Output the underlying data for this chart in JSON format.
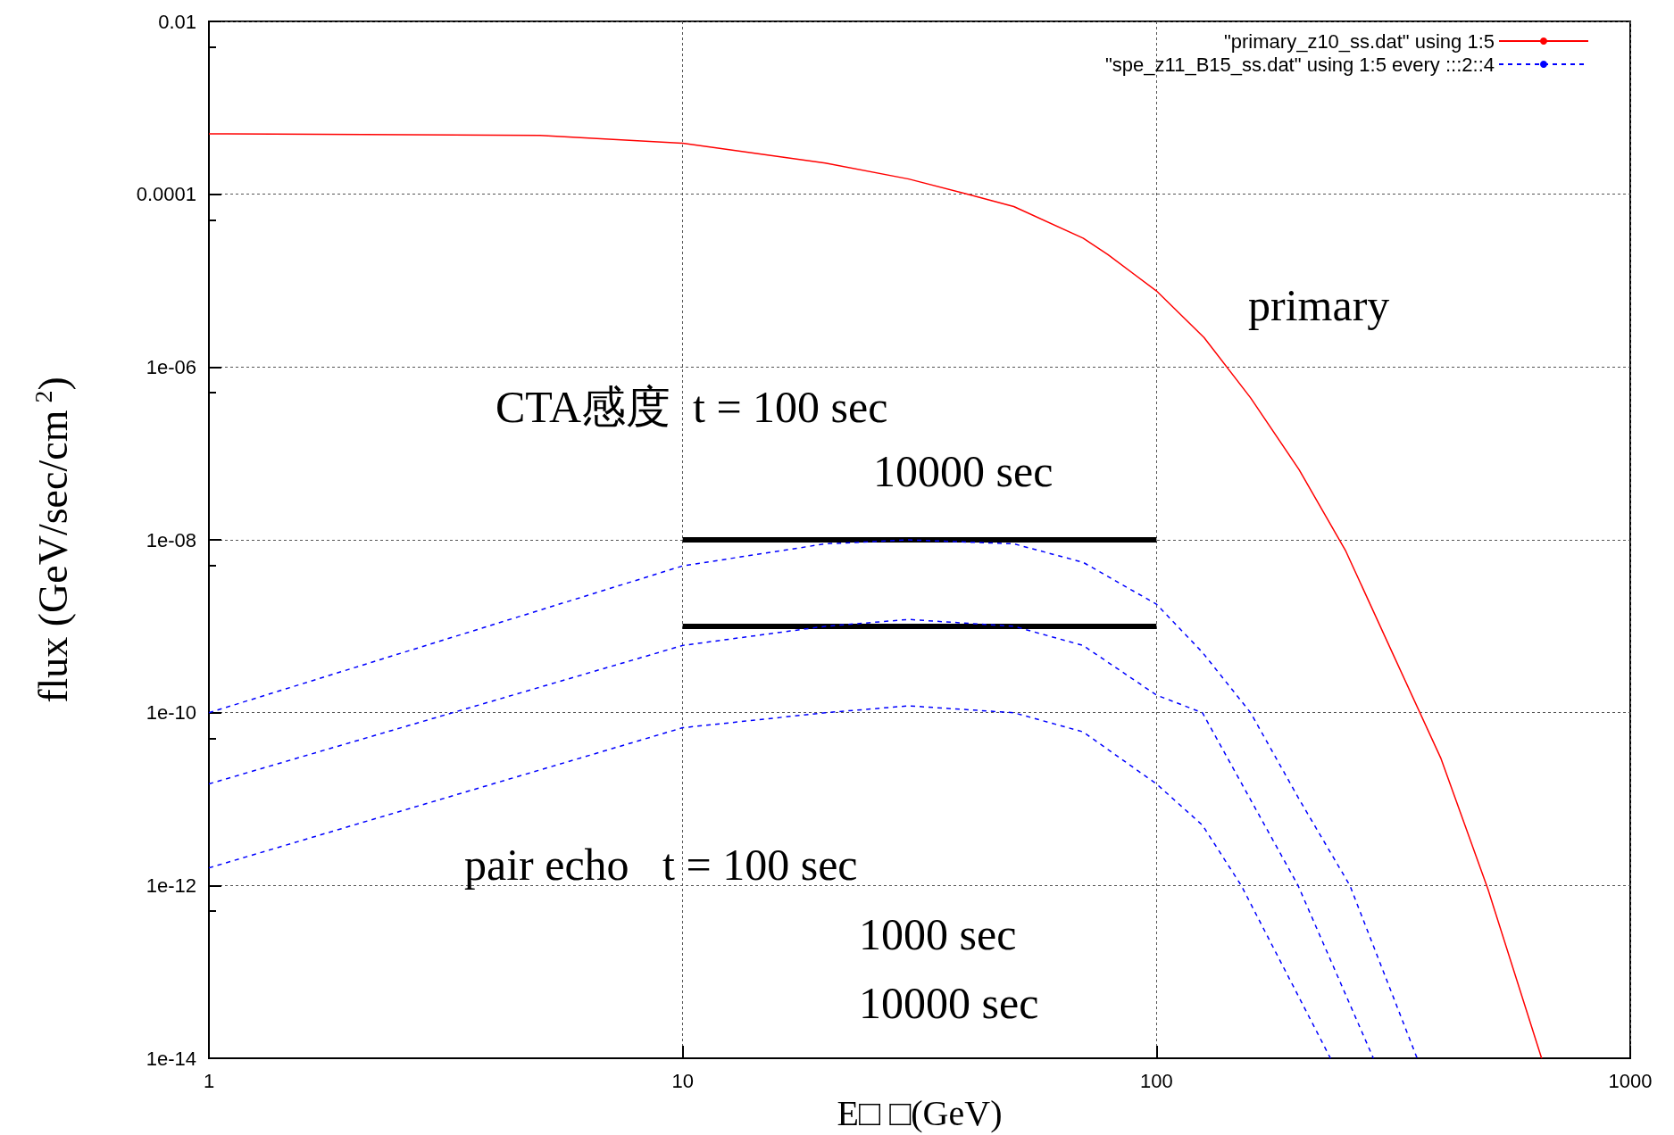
{
  "chart_data": {
    "type": "line",
    "xlabel": "E□ □(GeV)",
    "ylabel": "flux (GeV/sec/cm$^{2}$)",
    "log": "xy",
    "grid": true,
    "legend": "top right",
    "xlim": [
      1,
      1000
    ],
    "xticks": [
      1,
      10,
      100,
      1000
    ],
    "ylim": [
      1e-14,
      0.01
    ],
    "yticks": [
      {
        "value": 1e-14,
        "label": "1e-14"
      },
      {
        "value": 1e-12,
        "label": "1e-12"
      },
      {
        "value": 1e-10,
        "label": "1e-10"
      },
      {
        "value": 1e-08,
        "label": "1e-08"
      },
      {
        "value": 1e-06,
        "label": "1e-06"
      },
      {
        "value": 0.0001,
        "label": "0.0001"
      },
      {
        "value": 0.01,
        "label": "0.01"
      }
    ],
    "series": [
      {
        "name": "\"primary_z10_ss.dat\" using 1:5",
        "color": "#ff0000",
        "line_style": "solid",
        "x": [
          1,
          5,
          10,
          20,
          30,
          40,
          50,
          70,
          79,
          100,
          126,
          158,
          200,
          251,
          316,
          398,
          501,
          650
        ],
        "values": [
          0.0005,
          0.00048,
          0.00039,
          0.00023,
          0.00015,
          0.0001,
          7.2e-05,
          3.1e-05,
          2e-05,
          7.6e-06,
          2.2e-06,
          4.4e-07,
          6.5e-08,
          7.4e-09,
          4.7e-10,
          3e-11,
          9e-13,
          1e-14
        ]
      },
      {
        "name": "\"spe_z11_B15_ss.dat\" using 1:5 every :::2::4",
        "color": "#0000ff",
        "line_style": "dashed",
        "x": [
          1,
          10,
          20,
          30,
          50,
          70,
          100,
          125,
          158,
          200,
          256,
          355
        ],
        "values": [
          1e-10,
          5e-09,
          9e-09,
          1e-08,
          9e-09,
          5.5e-09,
          1.8e-09,
          5e-10,
          1e-10,
          1e-11,
          1e-12,
          1e-14
        ]
      },
      {
        "color": "#0000ff",
        "line_style": "dashed",
        "x": [
          1,
          10,
          20,
          30,
          50,
          70,
          100,
          125,
          199,
          287
        ],
        "values": [
          1.5e-11,
          6e-10,
          1e-09,
          1.2e-09,
          1e-09,
          6e-10,
          1.6e-10,
          1e-10,
          1e-12,
          1e-14
        ]
      },
      {
        "color": "#0000ff",
        "line_style": "dashed",
        "x": [
          1,
          10,
          20,
          30,
          50,
          70,
          100,
          125,
          151,
          233
        ],
        "values": [
          1.6e-12,
          6.7e-11,
          1e-10,
          1.2e-10,
          1e-10,
          6e-11,
          1.5e-11,
          5e-12,
          1e-12,
          1e-14
        ]
      },
      {
        "color": "#000000",
        "line_style": "solid",
        "x": [
          10,
          100
        ],
        "values": [
          1e-08,
          1e-08
        ]
      },
      {
        "color": "#000000",
        "line_style": "solid",
        "x": [
          10,
          100
        ],
        "values": [
          1e-09,
          1e-09
        ]
      }
    ],
    "annotations": [
      "primary",
      "CTA感度  t = 100 sec",
      "10000 sec",
      "pair echo   t = 100 sec",
      "1000 sec",
      "10000 sec"
    ]
  }
}
